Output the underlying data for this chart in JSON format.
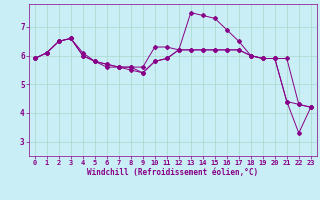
{
  "background_color": "#caeef5",
  "line_color": "#880088",
  "grid_color": "#a8d8cc",
  "xlabel": "Windchill (Refroidissement éolien,°C)",
  "xlabel_color": "#880088",
  "ylim": [
    2.5,
    7.8
  ],
  "xlim": [
    -0.5,
    23.5
  ],
  "yticks": [
    3,
    4,
    5,
    6,
    7
  ],
  "xticks": [
    0,
    1,
    2,
    3,
    4,
    5,
    6,
    7,
    8,
    9,
    10,
    11,
    12,
    13,
    14,
    15,
    16,
    17,
    18,
    19,
    20,
    21,
    22,
    23
  ],
  "series": [
    {
      "x": [
        0,
        1,
        2,
        3,
        4,
        5,
        6,
        7,
        8,
        9,
        10,
        11,
        12,
        13,
        14,
        15,
        16,
        17,
        18,
        19,
        20,
        21,
        22,
        23
      ],
      "y": [
        5.9,
        6.1,
        6.5,
        6.6,
        6.1,
        5.8,
        5.7,
        5.6,
        5.6,
        5.6,
        6.3,
        6.3,
        6.2,
        6.2,
        6.2,
        6.2,
        6.2,
        6.2,
        6.0,
        5.9,
        5.9,
        5.9,
        4.3,
        4.2
      ]
    },
    {
      "x": [
        0,
        1,
        2,
        3,
        4,
        5,
        6,
        7,
        8,
        9,
        10,
        11,
        12,
        13,
        14,
        15,
        16,
        17,
        18,
        19,
        20,
        21,
        22,
        23
      ],
      "y": [
        5.9,
        6.1,
        6.5,
        6.6,
        6.0,
        5.8,
        5.6,
        5.6,
        5.5,
        5.4,
        5.8,
        5.9,
        6.2,
        7.5,
        7.4,
        7.3,
        6.9,
        6.5,
        6.0,
        5.9,
        5.9,
        4.4,
        3.3,
        4.2
      ]
    },
    {
      "x": [
        0,
        1,
        2,
        3,
        4,
        5,
        6,
        7,
        8,
        9,
        10,
        11,
        12,
        13,
        14,
        15,
        16,
        17,
        18,
        19,
        20,
        21,
        22,
        23
      ],
      "y": [
        5.9,
        6.1,
        6.5,
        6.6,
        6.0,
        5.8,
        5.7,
        5.6,
        5.6,
        5.4,
        5.8,
        5.9,
        6.2,
        6.2,
        6.2,
        6.2,
        6.2,
        6.2,
        6.0,
        5.9,
        5.9,
        4.4,
        4.3,
        4.2
      ]
    }
  ],
  "tick_fontsize": 5,
  "xlabel_fontsize": 5.5,
  "marker_size": 2.0,
  "linewidth": 0.7
}
